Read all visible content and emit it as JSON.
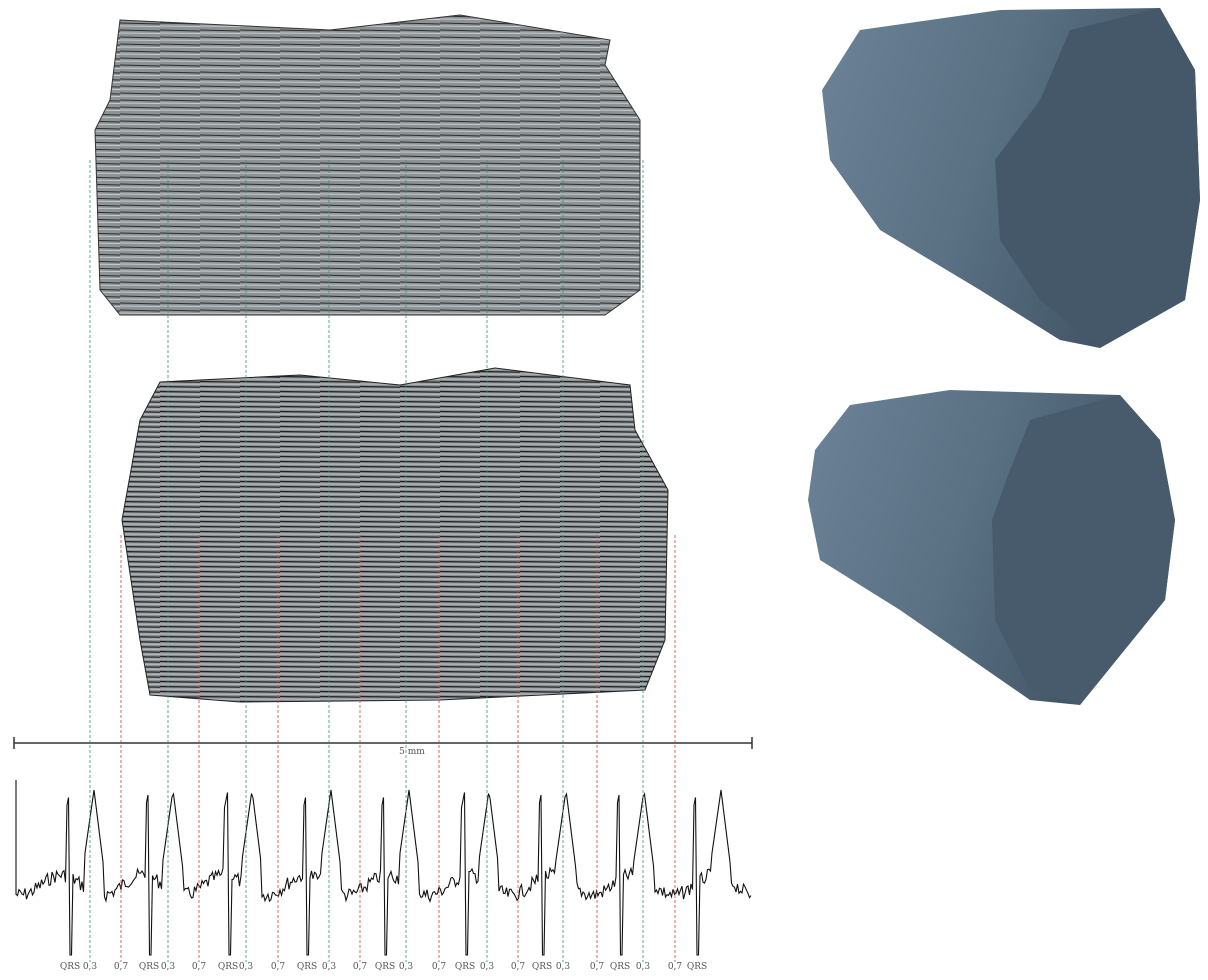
{
  "scale_bar": {
    "label": "5 mm"
  },
  "ecg_labels": [
    "QRS",
    "0,3",
    "0,7",
    "QRS",
    "0,3",
    "0,7",
    "QRS",
    "0,3",
    "0,7",
    "QRS",
    "0,3",
    "0,7",
    "QRS",
    "0,3",
    "0,7",
    "QRS",
    "0,3",
    "0,7",
    "QRS",
    "0,3",
    "0,7",
    "QRS",
    "0,3",
    "0,7",
    "QRS"
  ]
}
